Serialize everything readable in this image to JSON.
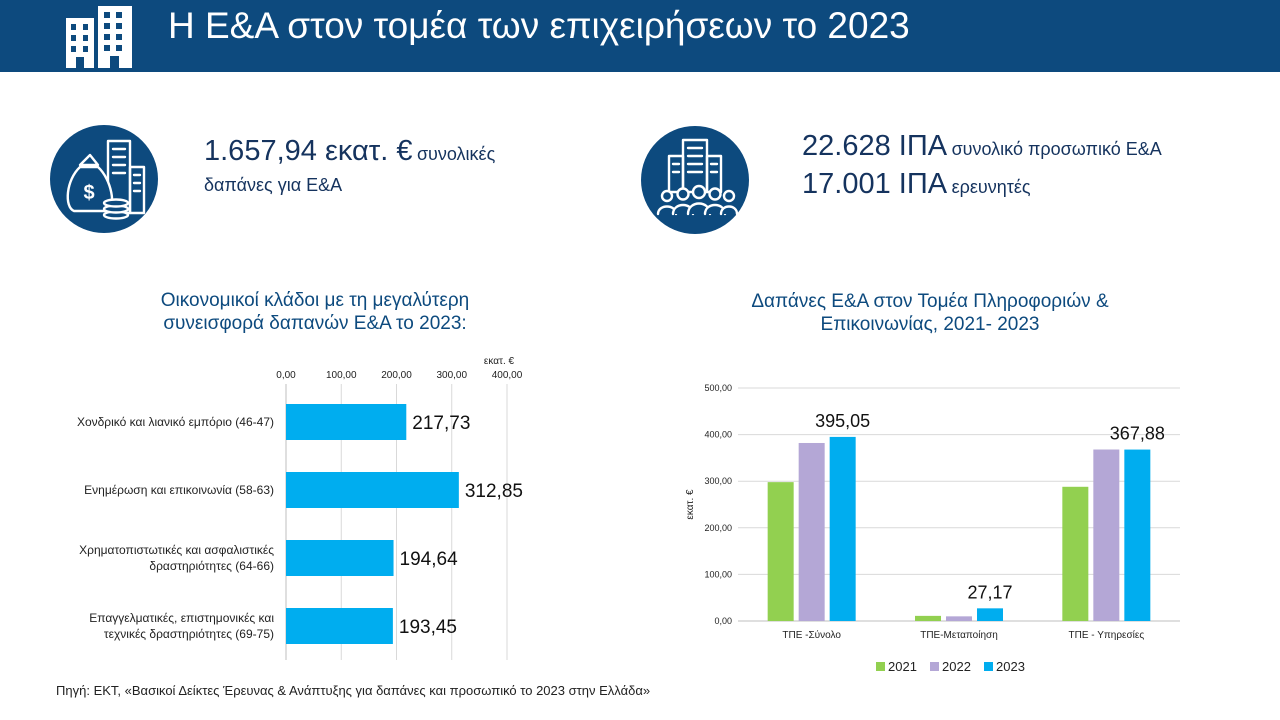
{
  "header": {
    "title": "Η Ε&Α στον τομέα των επιχειρήσεων το 2023",
    "icon": "buildings-icon"
  },
  "kpis": {
    "spending": {
      "icon": "money-bag-city-icon",
      "value": "1.657,94 εκατ. €",
      "label_inline": "συνολικές",
      "label_line2": "δαπάνες για Ε&Α"
    },
    "personnel": {
      "icon": "building-people-icon",
      "line1_value": "22.628 ΙΠΑ",
      "line1_label": "συνολικό προσωπικό Ε&Α",
      "line2_value": "17.001 ΙΠΑ",
      "line2_label": "ερευνητές"
    }
  },
  "colors": {
    "header": "#0d4a7e",
    "bar_blue": "#00adef",
    "y2021": "#92d050",
    "y2022": "#b4a7d6",
    "y2023": "#00adef"
  },
  "chart_data": [
    {
      "type": "bar",
      "orientation": "horizontal",
      "title_lines": [
        "Οικονομικοί κλάδοι με τη μεγαλύτερη",
        "συνεισφορά δαπανών Ε&Α το 2023:"
      ],
      "unit_label": "εκατ. €",
      "xlim": [
        0,
        400
      ],
      "ticks": [
        "0,00",
        "100,00",
        "200,00",
        "300,00",
        "400,00"
      ],
      "tick_values": [
        0,
        100,
        200,
        300,
        400
      ],
      "grid": true,
      "categories": [
        [
          "Χονδρικό και λιανικό εμπόριο (46-47)"
        ],
        [
          "Ενημέρωση και επικοινωνία  (58-63)"
        ],
        [
          "Χρηματοπιστωτικές και ασφαλιστικές",
          "δραστηριότητες (64-66)"
        ],
        [
          "Επαγγελματικές, επιστημονικές και",
          "τεχνικές  δραστηριότητες (69-75)"
        ]
      ],
      "values": [
        217.73,
        312.85,
        194.64,
        193.45
      ],
      "value_labels": [
        "217,73",
        "312,85",
        "194,64",
        "193,45"
      ]
    },
    {
      "type": "bar",
      "orientation": "vertical",
      "title_lines": [
        "Δαπάνες Ε&Α στον Τομέα Πληροφοριών &",
        "Επικοινωνίας, 2021- 2023"
      ],
      "ylabel": "εκατ. €",
      "ylim": [
        0,
        500
      ],
      "ticks": [
        "0,00",
        "100,00",
        "200,00",
        "300,00",
        "400,00",
        "500,00"
      ],
      "tick_values": [
        0,
        100,
        200,
        300,
        400,
        500
      ],
      "grid": true,
      "legend_position": "bottom",
      "categories": [
        "ΤΠΕ -Σύνολο",
        "ΤΠΕ-Μεταποίηση",
        "ΤΠΕ - Υπηρεσίες"
      ],
      "series": [
        {
          "name": "2021",
          "values": [
            298,
            11,
            288
          ],
          "color": "#92d050"
        },
        {
          "name": "2022",
          "values": [
            382,
            10,
            368
          ],
          "color": "#b4a7d6"
        },
        {
          "name": "2023",
          "values": [
            395.05,
            27.17,
            367.88
          ],
          "color": "#00adef"
        }
      ],
      "annotations": [
        {
          "series": "2023",
          "category": "ΤΠΕ -Σύνολο",
          "label": "395,05"
        },
        {
          "series": "2023",
          "category": "ΤΠΕ-Μεταποίηση",
          "label": "27,17"
        },
        {
          "series": "2023",
          "category": "ΤΠΕ - Υπηρεσίες",
          "label": "367,88"
        }
      ]
    }
  ],
  "footer": {
    "source": "Πηγή: ΕΚΤ, «Βασικοί Δείκτες Έρευνας & Ανάπτυξης για δαπάνες και προσωπικό το 2023 στην Ελλάδα»"
  }
}
